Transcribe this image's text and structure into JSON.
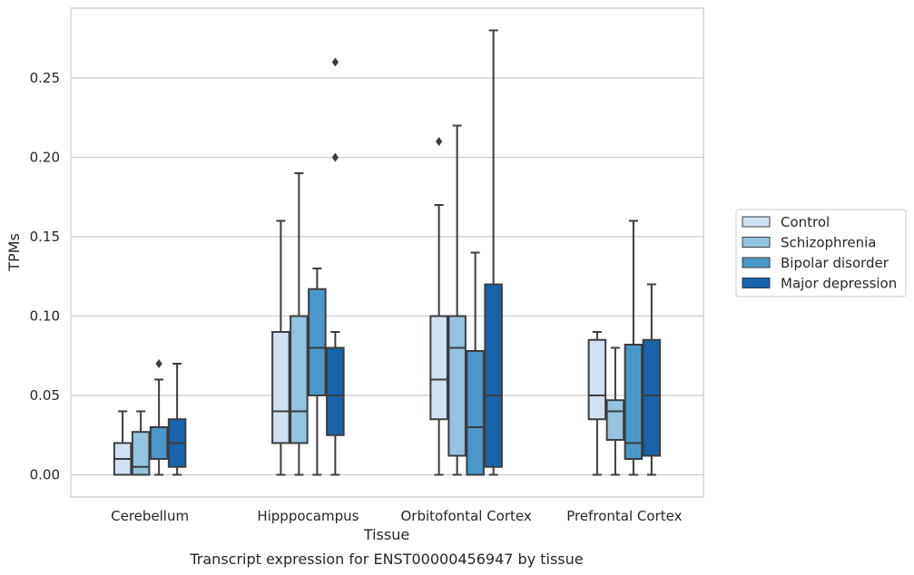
{
  "chart_data": {
    "type": "box",
    "title": "",
    "caption": "Transcript expression for ENST00000456947 by tissue",
    "xlabel": "Tissue",
    "ylabel": "TPMs",
    "ylim": [
      -0.014,
      0.294
    ],
    "yticks": [
      0.0,
      0.05,
      0.1,
      0.15,
      0.2,
      0.25
    ],
    "ytick_labels": [
      "0.00",
      "0.05",
      "0.10",
      "0.15",
      "0.20",
      "0.25"
    ],
    "grid": "horizontal",
    "legend_position": "right",
    "categories": [
      "Cerebellum",
      "Hipppocampus",
      "Orbitofontal Cortex",
      "Prefrontal Cortex"
    ],
    "series": [
      {
        "name": "Control",
        "color": "#d0e1f2",
        "boxes": [
          {
            "whisker_low": 0.0,
            "q1": 0.0,
            "median": 0.01,
            "q3": 0.02,
            "whisker_high": 0.04,
            "outliers": []
          },
          {
            "whisker_low": 0.0,
            "q1": 0.02,
            "median": 0.04,
            "q3": 0.09,
            "whisker_high": 0.16,
            "outliers": []
          },
          {
            "whisker_low": 0.0,
            "q1": 0.035,
            "median": 0.06,
            "q3": 0.1,
            "whisker_high": 0.17,
            "outliers": [
              0.21
            ]
          },
          {
            "whisker_low": 0.0,
            "q1": 0.035,
            "median": 0.05,
            "q3": 0.085,
            "whisker_high": 0.09,
            "outliers": []
          }
        ]
      },
      {
        "name": "Schizophrenia",
        "color": "#94c4df",
        "boxes": [
          {
            "whisker_low": 0.0,
            "q1": 0.0,
            "median": 0.005,
            "q3": 0.027,
            "whisker_high": 0.04,
            "outliers": []
          },
          {
            "whisker_low": 0.0,
            "q1": 0.02,
            "median": 0.04,
            "q3": 0.1,
            "whisker_high": 0.19,
            "outliers": []
          },
          {
            "whisker_low": 0.0,
            "q1": 0.012,
            "median": 0.08,
            "q3": 0.1,
            "whisker_high": 0.22,
            "outliers": []
          },
          {
            "whisker_low": 0.0,
            "q1": 0.022,
            "median": 0.04,
            "q3": 0.047,
            "whisker_high": 0.08,
            "outliers": []
          }
        ]
      },
      {
        "name": "Bipolar disorder",
        "color": "#4a98c9",
        "boxes": [
          {
            "whisker_low": 0.0,
            "q1": 0.01,
            "median": 0.01,
            "q3": 0.03,
            "whisker_high": 0.06,
            "outliers": [
              0.07
            ]
          },
          {
            "whisker_low": 0.0,
            "q1": 0.05,
            "median": 0.08,
            "q3": 0.117,
            "whisker_high": 0.13,
            "outliers": []
          },
          {
            "whisker_low": 0.0,
            "q1": 0.0,
            "median": 0.03,
            "q3": 0.078,
            "whisker_high": 0.14,
            "outliers": []
          },
          {
            "whisker_low": 0.0,
            "q1": 0.01,
            "median": 0.02,
            "q3": 0.082,
            "whisker_high": 0.16,
            "outliers": []
          }
        ]
      },
      {
        "name": "Major depression",
        "color": "#1764ab",
        "boxes": [
          {
            "whisker_low": 0.0,
            "q1": 0.005,
            "median": 0.02,
            "q3": 0.035,
            "whisker_high": 0.07,
            "outliers": []
          },
          {
            "whisker_low": 0.0,
            "q1": 0.025,
            "median": 0.05,
            "q3": 0.08,
            "whisker_high": 0.09,
            "outliers": [
              0.2,
              0.26
            ]
          },
          {
            "whisker_low": 0.0,
            "q1": 0.005,
            "median": 0.05,
            "q3": 0.12,
            "whisker_high": 0.28,
            "outliers": []
          },
          {
            "whisker_low": 0.0,
            "q1": 0.012,
            "median": 0.05,
            "q3": 0.085,
            "whisker_high": 0.12,
            "outliers": []
          }
        ]
      }
    ]
  }
}
